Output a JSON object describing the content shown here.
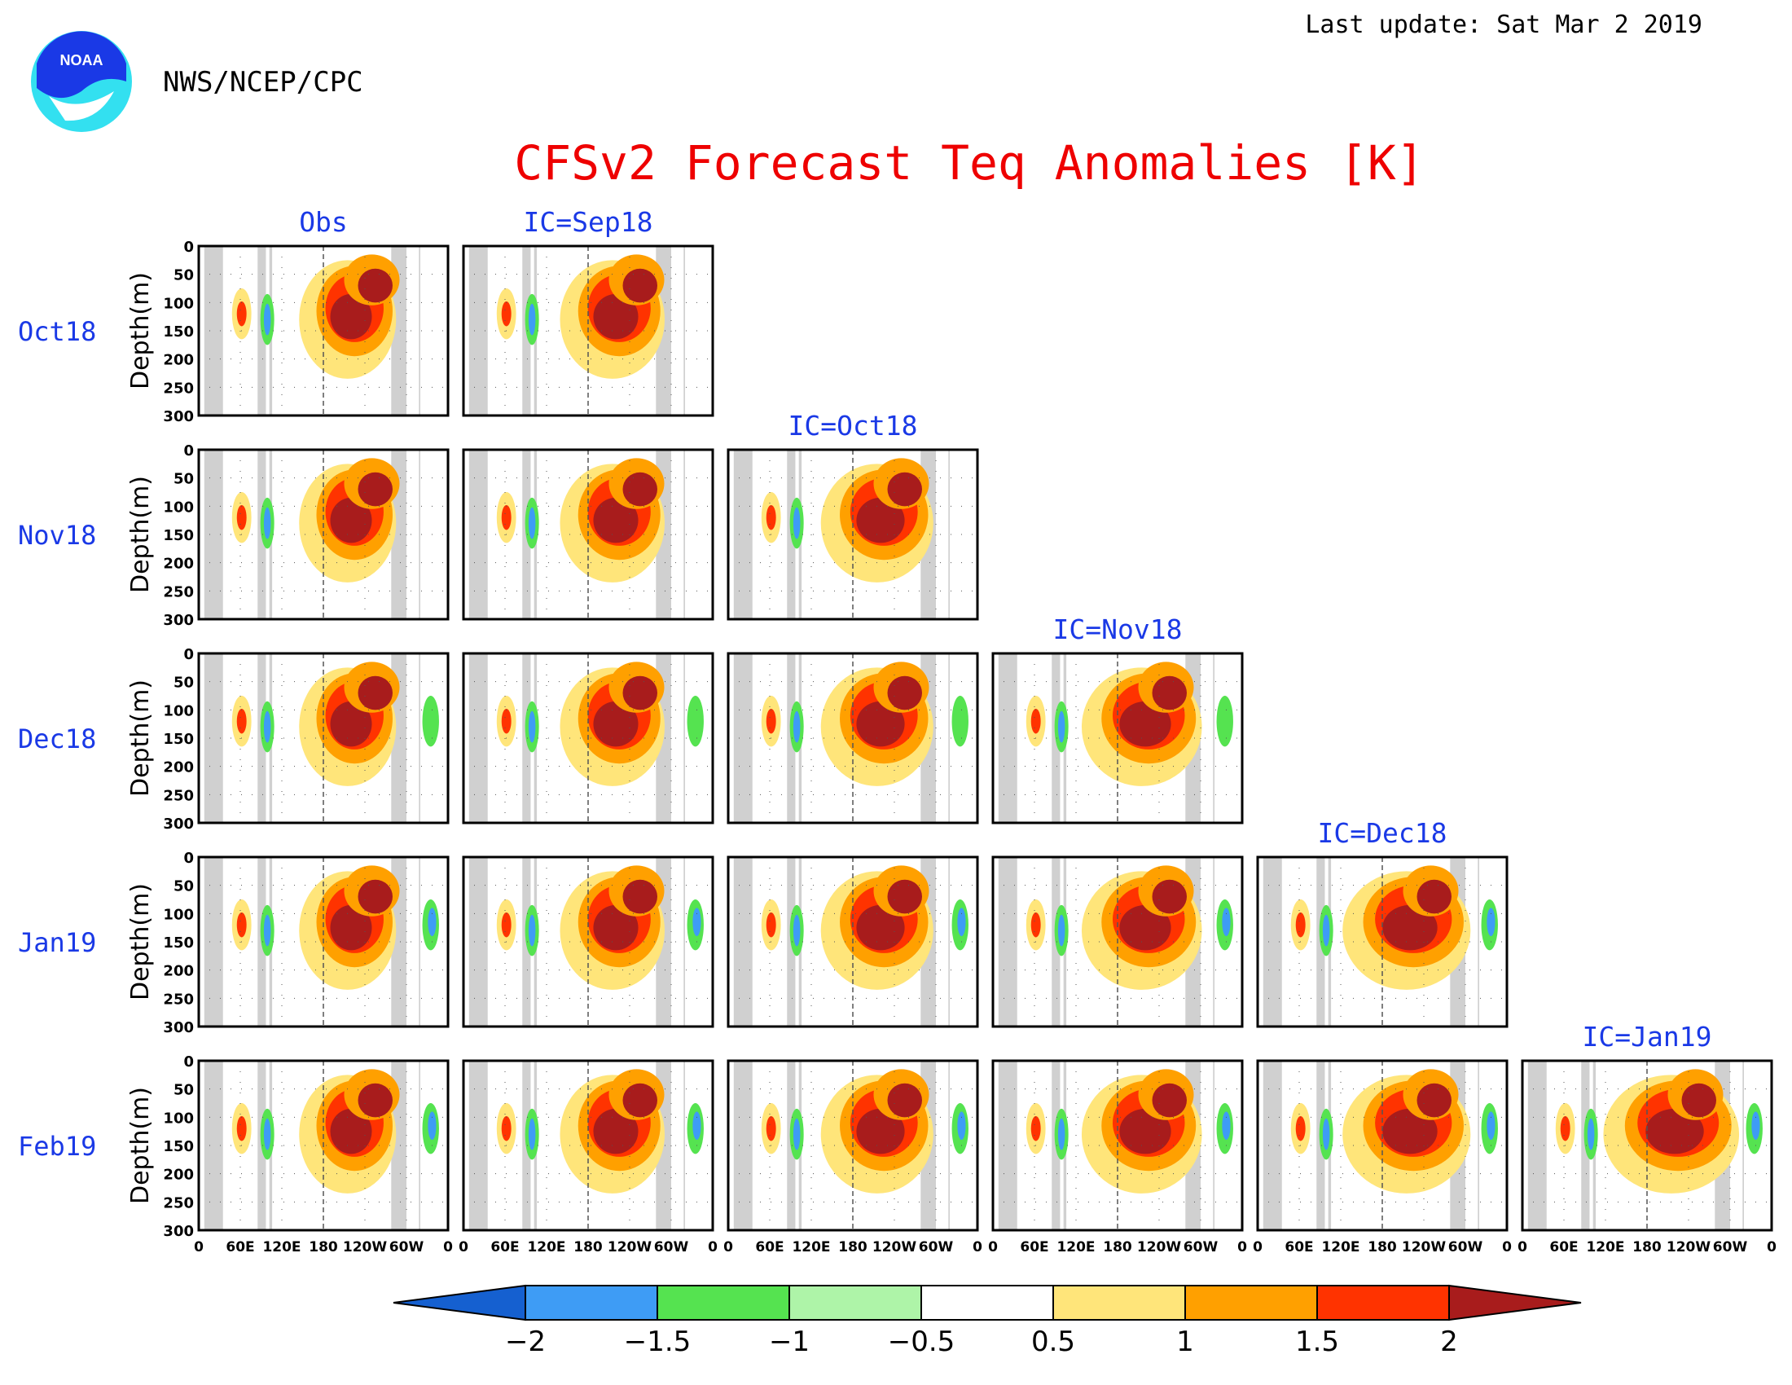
{
  "header": {
    "agency": "NWS/NCEP/CPC",
    "logo_text": "NOAA",
    "last_update": "Last update: Sat Mar 2 2019"
  },
  "chart_data": {
    "type": "heatmap",
    "title": "CFSv2 Forecast Teq Anomalies [K]",
    "ylabel": "Depth(m)",
    "y_ticks": [
      "0",
      "50",
      "100",
      "150",
      "200",
      "250",
      "300"
    ],
    "x_ticks": [
      "0",
      "60E",
      "120E",
      "180",
      "120W",
      "60W",
      "0"
    ],
    "ylim": [
      300,
      0
    ],
    "columns": [
      "Obs",
      "IC=Sep18",
      "IC=Oct18",
      "IC=Nov18",
      "IC=Dec18",
      "IC=Jan19"
    ],
    "rows": [
      "Oct18",
      "Nov18",
      "Dec18",
      "Jan19",
      "Feb19"
    ],
    "colorbar": {
      "labels": [
        "−2",
        "−1.5",
        "−1",
        "−0.5",
        "0.5",
        "1",
        "1.5",
        "2"
      ],
      "levels": [
        -2,
        -1.5,
        -1,
        -0.5,
        0.5,
        1,
        1.5,
        2
      ],
      "colors": [
        "#1560d0",
        "#3e9cf5",
        "#55e350",
        "#aef4a8",
        "#ffffff",
        "#ffe57a",
        "#ffa000",
        "#ff3300",
        "#a81c1c"
      ]
    },
    "colors": {
      "title": "#ee0000",
      "labels": "#1a39e6",
      "land_mask": "#d0d0d0"
    }
  }
}
